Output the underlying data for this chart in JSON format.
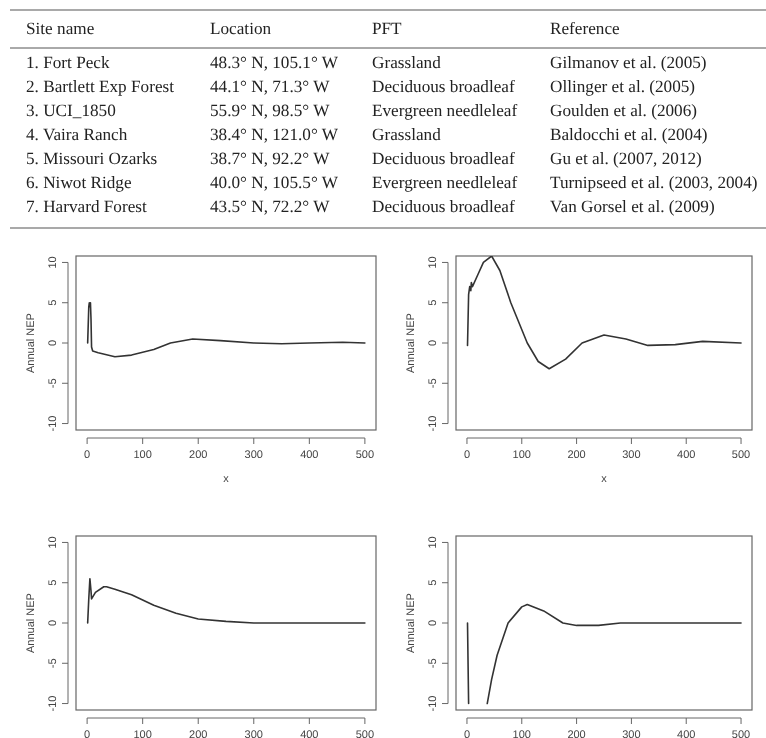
{
  "chart_data": [
    {
      "type": "other",
      "annotations": [
        "Site name",
        "Location",
        "PFT",
        "Reference",
        "1. Fort Peck",
        "48.3° N, 105.1° W",
        "Grassland",
        "Gilmanov et al. (2005)",
        "2. Bartlett Exp Forest",
        "44.1° N, 71.3° W",
        "Deciduous broadleaf",
        "Ollinger et al. (2005)",
        "3. UCI_1850",
        "55.9° N, 98.5° W",
        "Evergreen needleleaf",
        "Goulden et al. (2006)",
        "4. Vaira Ranch",
        "38.4° N, 121.0° W",
        "Grassland",
        "Baldocchi et al. (2004)",
        "5. Missouri Ozarks",
        "38.7° N, 92.2° W",
        "Deciduous broadleaf",
        "Gu et al. (2007, 2012)",
        "6. Niwot Ridge",
        "40.0° N, 105.5° W",
        "Evergreen needleleaf",
        "Turnipseed et al. (2003, 2004)",
        "7. Harvard Forest",
        "43.5° N, 72.2° W",
        "Deciduous broadleaf",
        "Van Gorsel et al. (2009)"
      ]
    },
    {
      "type": "line",
      "xlabel": "x",
      "ylabel": "Annual NEP",
      "xlim": [
        -20,
        520
      ],
      "ylim": [
        -10.8,
        10.8
      ],
      "xticks": [
        0,
        100,
        200,
        300,
        400,
        500
      ],
      "yticks": [
        -10,
        -5,
        0,
        5,
        10
      ],
      "x": [
        1,
        3,
        4,
        5,
        6,
        7,
        8,
        10,
        20,
        50,
        80,
        120,
        150,
        190,
        240,
        300,
        350,
        400,
        460,
        500
      ],
      "series": [
        {
          "color": "#333333",
          "values": [
            0,
            4.5,
            5,
            4.5,
            5,
            3,
            -0.5,
            -1,
            -1.2,
            -1.7,
            -1.5,
            -0.8,
            0,
            0.5,
            0.3,
            0,
            -0.1,
            0,
            0.1,
            0
          ]
        }
      ]
    },
    {
      "type": "line",
      "xlabel": "x",
      "ylabel": "Annual NEP",
      "xlim": [
        -20,
        520
      ],
      "ylim": [
        -10.8,
        10.8
      ],
      "xticks": [
        0,
        100,
        200,
        300,
        400,
        500
      ],
      "yticks": [
        -10,
        -5,
        0,
        5,
        10
      ],
      "x": [
        1,
        3,
        5,
        7,
        8,
        10,
        20,
        30,
        45,
        60,
        80,
        110,
        130,
        150,
        180,
        210,
        250,
        290,
        330,
        380,
        430,
        500
      ],
      "series": [
        {
          "color": "#333333",
          "values": [
            -0.3,
            6,
            7,
            6.5,
            7.5,
            7,
            8.5,
            10,
            10.8,
            9,
            5,
            0,
            -2.3,
            -3.2,
            -2,
            0,
            1,
            0.5,
            -0.3,
            -0.2,
            0.2,
            0
          ]
        }
      ]
    },
    {
      "type": "line",
      "ylabel": "Annual NEP",
      "xlim": [
        -20,
        520
      ],
      "ylim": [
        -10.8,
        10.8
      ],
      "xticks": [
        0,
        100,
        200,
        300,
        400,
        500
      ],
      "yticks": [
        -10,
        -5,
        0,
        5,
        10
      ],
      "x": [
        1,
        3,
        5,
        7,
        8,
        15,
        30,
        35,
        50,
        80,
        120,
        160,
        200,
        250,
        300,
        400,
        500
      ],
      "series": [
        {
          "color": "#333333",
          "values": [
            0,
            3,
            5.5,
            4,
            3,
            3.8,
            4.5,
            4.5,
            4.2,
            3.5,
            2.2,
            1.2,
            0.5,
            0.2,
            0,
            0,
            0
          ]
        }
      ]
    },
    {
      "type": "line",
      "ylabel": "Annual NEP",
      "xlim": [
        -20,
        520
      ],
      "ylim": [
        -10.8,
        10.8
      ],
      "xticks": [
        0,
        100,
        200,
        300,
        400,
        500
      ],
      "yticks": [
        -10,
        -5,
        0,
        5,
        10
      ],
      "x": [
        1,
        3,
        20,
        37,
        45,
        55,
        75,
        100,
        110,
        140,
        175,
        200,
        240,
        280,
        350,
        500
      ],
      "series": [
        {
          "color": "#333333",
          "values": [
            0,
            -10,
            null,
            -10,
            -7,
            -4,
            0,
            2,
            2.3,
            1.5,
            0,
            -0.3,
            -0.3,
            0,
            0,
            0
          ]
        }
      ]
    }
  ]
}
